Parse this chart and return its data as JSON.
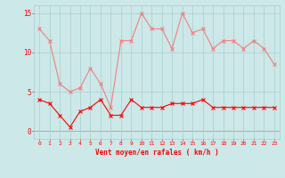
{
  "hours": [
    0,
    1,
    2,
    3,
    4,
    5,
    6,
    7,
    8,
    9,
    10,
    11,
    12,
    13,
    14,
    15,
    16,
    17,
    18,
    19,
    20,
    21,
    22,
    23
  ],
  "rafales": [
    13,
    11.5,
    6,
    5,
    5.5,
    8,
    6,
    3,
    11.5,
    11.5,
    15,
    13,
    13,
    10.5,
    15,
    12.5,
    13,
    10.5,
    11.5,
    11.5,
    10.5,
    11.5,
    10.5,
    8.5
  ],
  "moyen": [
    4,
    3.5,
    2,
    0.5,
    2.5,
    3,
    4,
    2,
    2,
    4,
    3,
    3,
    3,
    3.5,
    3.5,
    3.5,
    4,
    3,
    3,
    3,
    3,
    3,
    3,
    3
  ],
  "rafales_color": "#f08080",
  "moyen_color": "#ff0000",
  "background_color": "#cce8e8",
  "grid_color": "#aacece",
  "axis_color": "#ff0000",
  "xlabel": "Vent moyen/en rafales ( km/h )",
  "ylim": [
    -1,
    16
  ],
  "yticks": [
    0,
    5,
    10,
    15
  ],
  "xlabel_color": "#ff0000",
  "tick_color": "#ff0000",
  "marker_size": 2.5,
  "linewidth": 0.8
}
